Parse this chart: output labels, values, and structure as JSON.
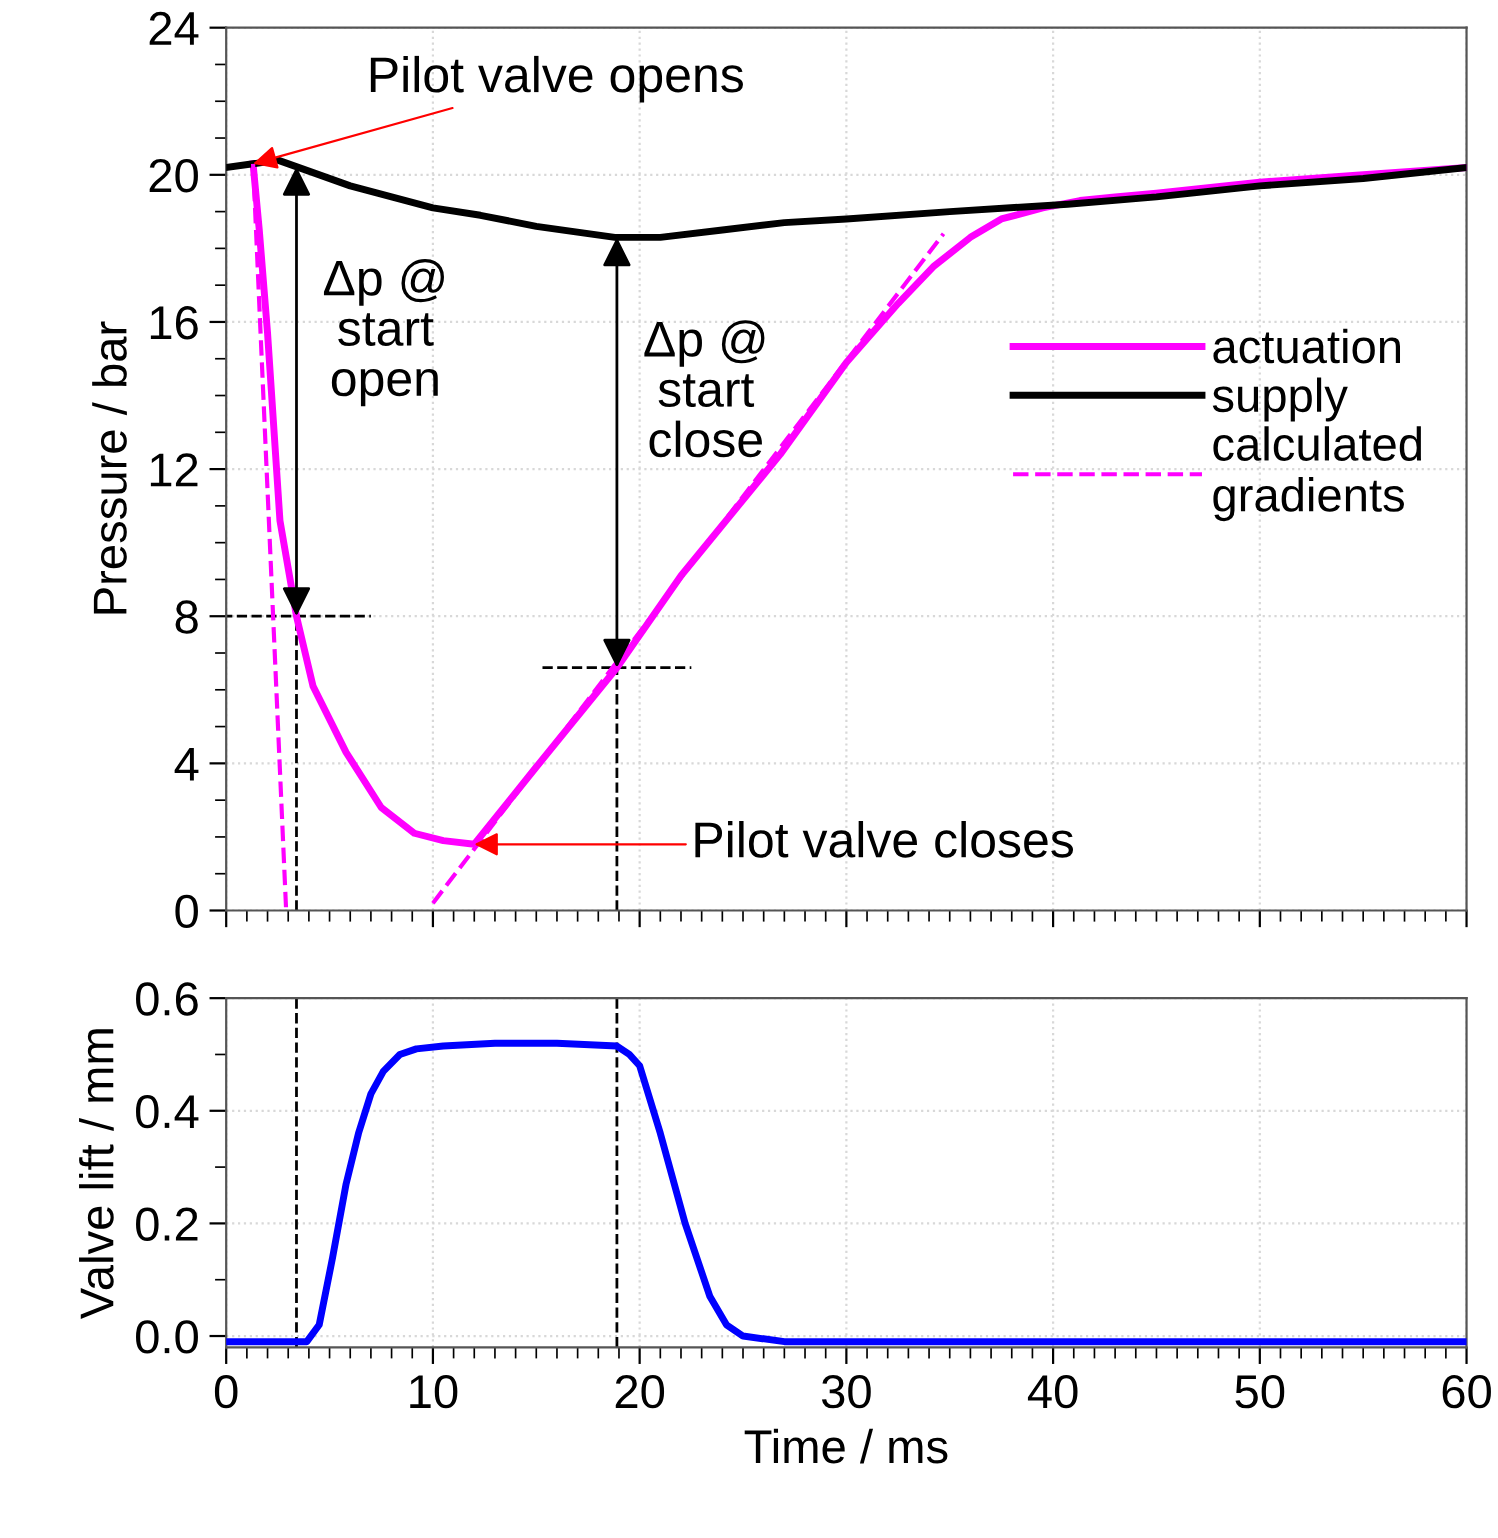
{
  "chart_data": [
    {
      "type": "line",
      "ylabel": "Pressure / bar",
      "xlim": [
        0,
        60
      ],
      "xticks": [
        0,
        10,
        20,
        30,
        40,
        50,
        60
      ],
      "ylim": [
        0,
        24
      ],
      "yticks": [
        0,
        4,
        8,
        12,
        16,
        20,
        24
      ],
      "tick_labels": "y",
      "grid": true,
      "legend": "right",
      "line_style": "solid",
      "marker": "none",
      "series": [
        {
          "name": "actuation",
          "color": "#ff00ff",
          "x": [
            1.3,
            1.6,
            2.0,
            2.6,
            3.4,
            4.2,
            5.8,
            7.5,
            9.1,
            10.5,
            12.0,
            15.0,
            18.9,
            22.0,
            26.8,
            30.0,
            32.5,
            34.2,
            36.0,
            37.5,
            39.5,
            41.3,
            43.0,
            45.0,
            50.0,
            55.0,
            60.0
          ],
          "values": [
            20.3,
            18.5,
            15.7,
            10.6,
            8.0,
            6.1,
            4.3,
            2.8,
            2.1,
            1.9,
            1.8,
            3.9,
            6.6,
            9.1,
            12.4,
            14.9,
            16.5,
            17.5,
            18.3,
            18.8,
            19.1,
            19.3,
            19.4,
            19.5,
            19.8,
            20.0,
            20.2
          ]
        },
        {
          "name": "supply",
          "color": "#000000",
          "x": [
            0,
            1.3,
            2.5,
            4.0,
            6.0,
            8.0,
            10.0,
            12.3,
            15.0,
            18.8,
            21.0,
            24.0,
            27.0,
            30.0,
            35.0,
            40.7,
            45.0,
            50.0,
            55.0,
            60.0
          ],
          "values": [
            20.2,
            20.3,
            20.4,
            20.1,
            19.7,
            19.4,
            19.1,
            18.9,
            18.6,
            18.3,
            18.3,
            18.5,
            18.7,
            18.8,
            19.0,
            19.2,
            19.4,
            19.7,
            19.9,
            20.2
          ]
        },
        {
          "name": "calculated\ngradients",
          "color": "#ff00ff",
          "line_style": "dashed",
          "x": [
            1.3,
            2.9
          ],
          "values": [
            20.3,
            0
          ]
        },
        {
          "color": "#ff00ff",
          "line_style": "dashed",
          "x": [
            10.0,
            34.7
          ],
          "values": [
            0.2,
            18.4
          ]
        }
      ],
      "ref_lines": [
        {
          "axis": "x",
          "value": 3.4,
          "color": "#000000",
          "line_style": "dashed"
        },
        {
          "axis": "x",
          "value": 18.9,
          "color": "#000000",
          "line_style": "dashed"
        },
        {
          "axis": "y",
          "value": 8,
          "color": "#000000",
          "line_style": "dashed"
        },
        {
          "axis": "y",
          "value": 6.6,
          "color": "#000000",
          "line_style": "dashed"
        }
      ],
      "annotations": [
        {
          "text": "Pilot valve opens",
          "x": 1.3,
          "y": 20.3
        },
        {
          "text": "Pilot valve closes",
          "x": 12.0,
          "y": 1.8
        },
        "Δp @\nstart\nopen",
        "Δp @\nstart\nclose"
      ]
    },
    {
      "type": "line",
      "xlabel": "Time / ms",
      "ylabel": "Valve lift / mm",
      "xlim": [
        0,
        60
      ],
      "xticks": [
        0,
        10,
        20,
        30,
        40,
        50,
        60
      ],
      "ylim": [
        -0.02,
        0.6
      ],
      "yticks": [
        {
          "value": 0,
          "label": "0.0"
        },
        {
          "value": 0.2,
          "label": "0.2"
        },
        {
          "value": 0.4,
          "label": "0.4"
        },
        {
          "value": 0.6,
          "label": "0.6"
        }
      ],
      "grid": true,
      "line_style": "solid",
      "marker": "none",
      "x": [
        0,
        2.0,
        3.9,
        4.5,
        5.15,
        5.8,
        6.4,
        7.0,
        7.6,
        8.4,
        9.2,
        10.5,
        13.0,
        16.0,
        18.9,
        19.5,
        20.0,
        21.0,
        22.2,
        23.4,
        24.2,
        25.0,
        27.0,
        30.0,
        40.0,
        50.0,
        60.0
      ],
      "series": [
        {
          "color": "#0000ff",
          "values": [
            -0.01,
            -0.01,
            -0.01,
            0.02,
            0.14,
            0.27,
            0.36,
            0.43,
            0.47,
            0.5,
            0.51,
            0.515,
            0.52,
            0.52,
            0.515,
            0.5,
            0.48,
            0.36,
            0.2,
            0.07,
            0.02,
            0.0,
            -0.01,
            -0.01,
            -0.01,
            -0.01,
            -0.01
          ]
        }
      ],
      "ref_lines": [
        {
          "axis": "x",
          "value": 3.4,
          "color": "#000000",
          "line_style": "dashed"
        },
        {
          "axis": "x",
          "value": 18.9,
          "color": "#000000",
          "line_style": "dashed"
        }
      ]
    }
  ]
}
